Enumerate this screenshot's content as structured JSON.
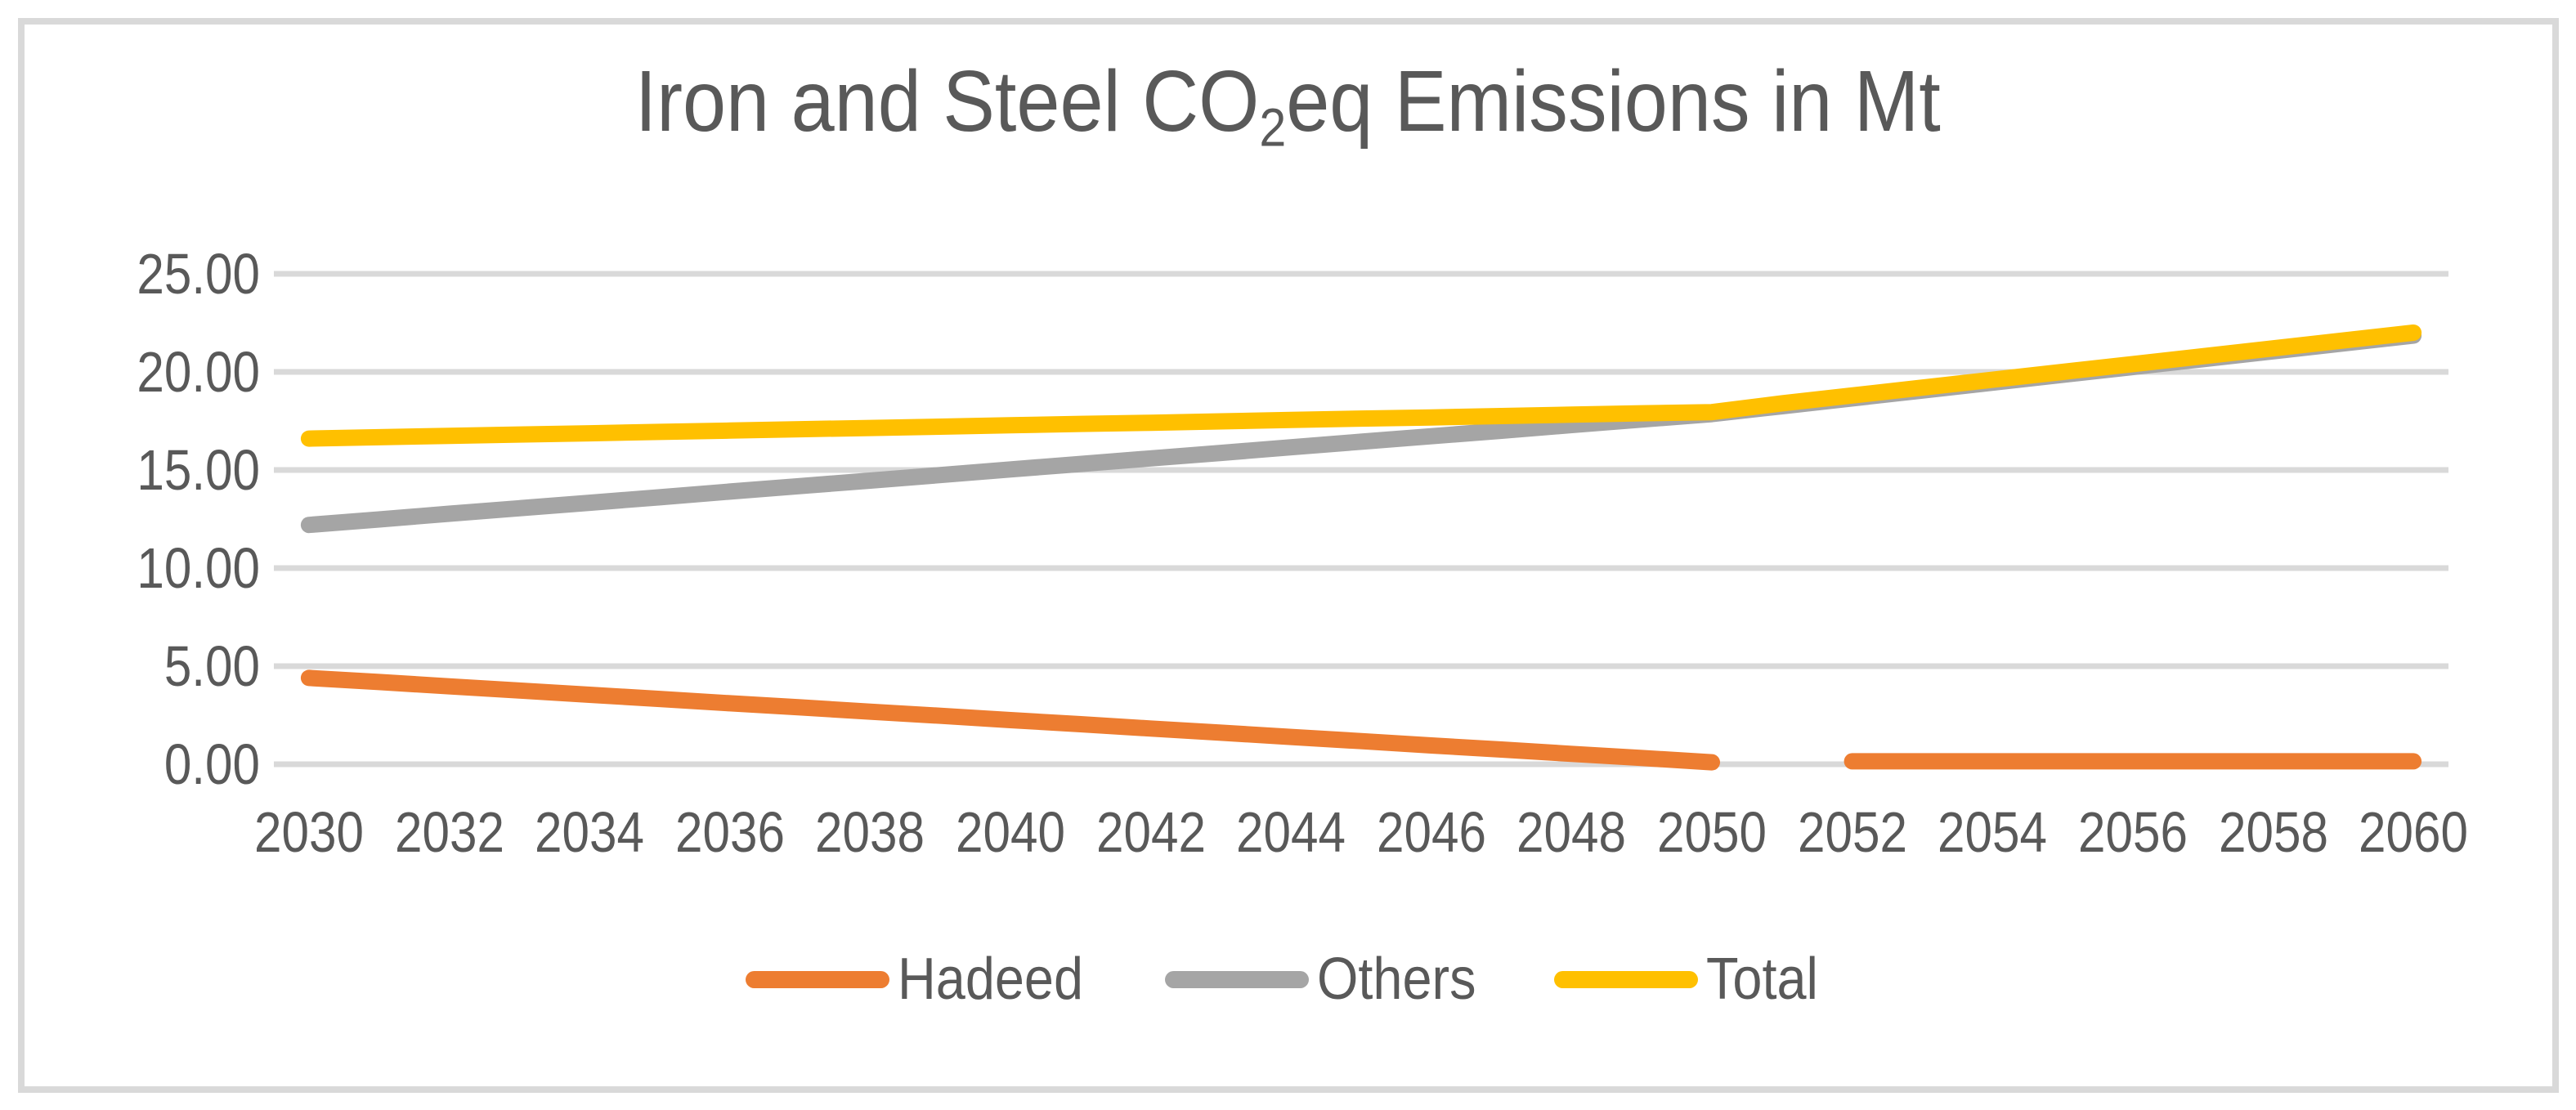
{
  "title": {
    "prefix": "Iron and Steel CO",
    "subscript": "2",
    "suffix": "eq Emissions in Mt",
    "full_text": "Iron and Steel CO2eq Emissions in Mt"
  },
  "colors": {
    "hadeed": "#ED7D31",
    "others": "#A5A5A5",
    "total": "#FFC000",
    "text": "#595959",
    "gridline": "#D9D9D9",
    "frame_border": "#D9D9D9",
    "background": "#FFFFFF"
  },
  "y_axis": {
    "tick_labels": [
      "25.00",
      "20.00",
      "15.00",
      "10.00",
      "5.00",
      "0.00"
    ],
    "min": 0,
    "max": 25,
    "step": 5
  },
  "x_axis": {
    "tick_labels": [
      "2030",
      "2032",
      "2034",
      "2036",
      "2038",
      "2040",
      "2042",
      "2044",
      "2046",
      "2048",
      "2050",
      "2052",
      "2054",
      "2056",
      "2058",
      "2060"
    ],
    "tick_interval_years": 2
  },
  "legend": {
    "position": "bottom",
    "items": [
      {
        "label": "Hadeed",
        "color": "#ED7D31"
      },
      {
        "label": "Others",
        "color": "#A5A5A5"
      },
      {
        "label": "Total",
        "color": "#FFC000"
      }
    ]
  },
  "chart_data": {
    "type": "line",
    "title": "Iron and Steel CO2eq Emissions in Mt",
    "xlabel": "",
    "ylabel": "",
    "ylim": [
      0,
      25
    ],
    "grid": "horizontal",
    "legend_position": "bottom",
    "x": [
      2030,
      2031,
      2032,
      2033,
      2034,
      2035,
      2036,
      2037,
      2038,
      2039,
      2040,
      2041,
      2042,
      2043,
      2044,
      2045,
      2046,
      2047,
      2048,
      2049,
      2050,
      2051,
      2052,
      2053,
      2054,
      2055,
      2056,
      2057,
      2058,
      2059,
      2060
    ],
    "series": [
      {
        "name": "Hadeed",
        "color": "#ED7D31",
        "values": [
          4.4,
          4.19,
          3.97,
          3.76,
          3.54,
          3.33,
          3.11,
          2.9,
          2.68,
          2.47,
          2.25,
          2.04,
          1.82,
          1.61,
          1.39,
          1.18,
          0.96,
          0.75,
          0.53,
          0.32,
          0.1,
          null,
          0.15,
          0.15,
          0.15,
          0.15,
          0.15,
          0.15,
          0.15,
          0.15,
          0.15
        ]
      },
      {
        "name": "Others",
        "color": "#A5A5A5",
        "values": [
          12.2,
          12.48,
          12.77,
          13.05,
          13.33,
          13.61,
          13.9,
          14.18,
          14.46,
          14.74,
          15.03,
          15.31,
          15.59,
          15.87,
          16.16,
          16.44,
          16.72,
          17.0,
          17.29,
          17.57,
          17.85,
          18.25,
          18.65,
          19.05,
          19.45,
          19.85,
          20.25,
          20.65,
          21.05,
          21.45,
          21.85
        ]
      },
      {
        "name": "Total",
        "color": "#FFC000",
        "values": [
          16.6,
          16.67,
          16.74,
          16.81,
          16.87,
          16.94,
          17.01,
          17.08,
          17.14,
          17.21,
          17.28,
          17.35,
          17.41,
          17.48,
          17.55,
          17.62,
          17.68,
          17.75,
          17.82,
          17.89,
          17.95,
          18.4,
          18.8,
          19.2,
          19.6,
          20.0,
          20.4,
          20.8,
          21.2,
          21.6,
          22.0
        ]
      }
    ],
    "annotations": "Hadeed line has a visible gap between 2050 and 2052 (missing 2051 value); Others line is hidden behind Total line after about 2050"
  }
}
